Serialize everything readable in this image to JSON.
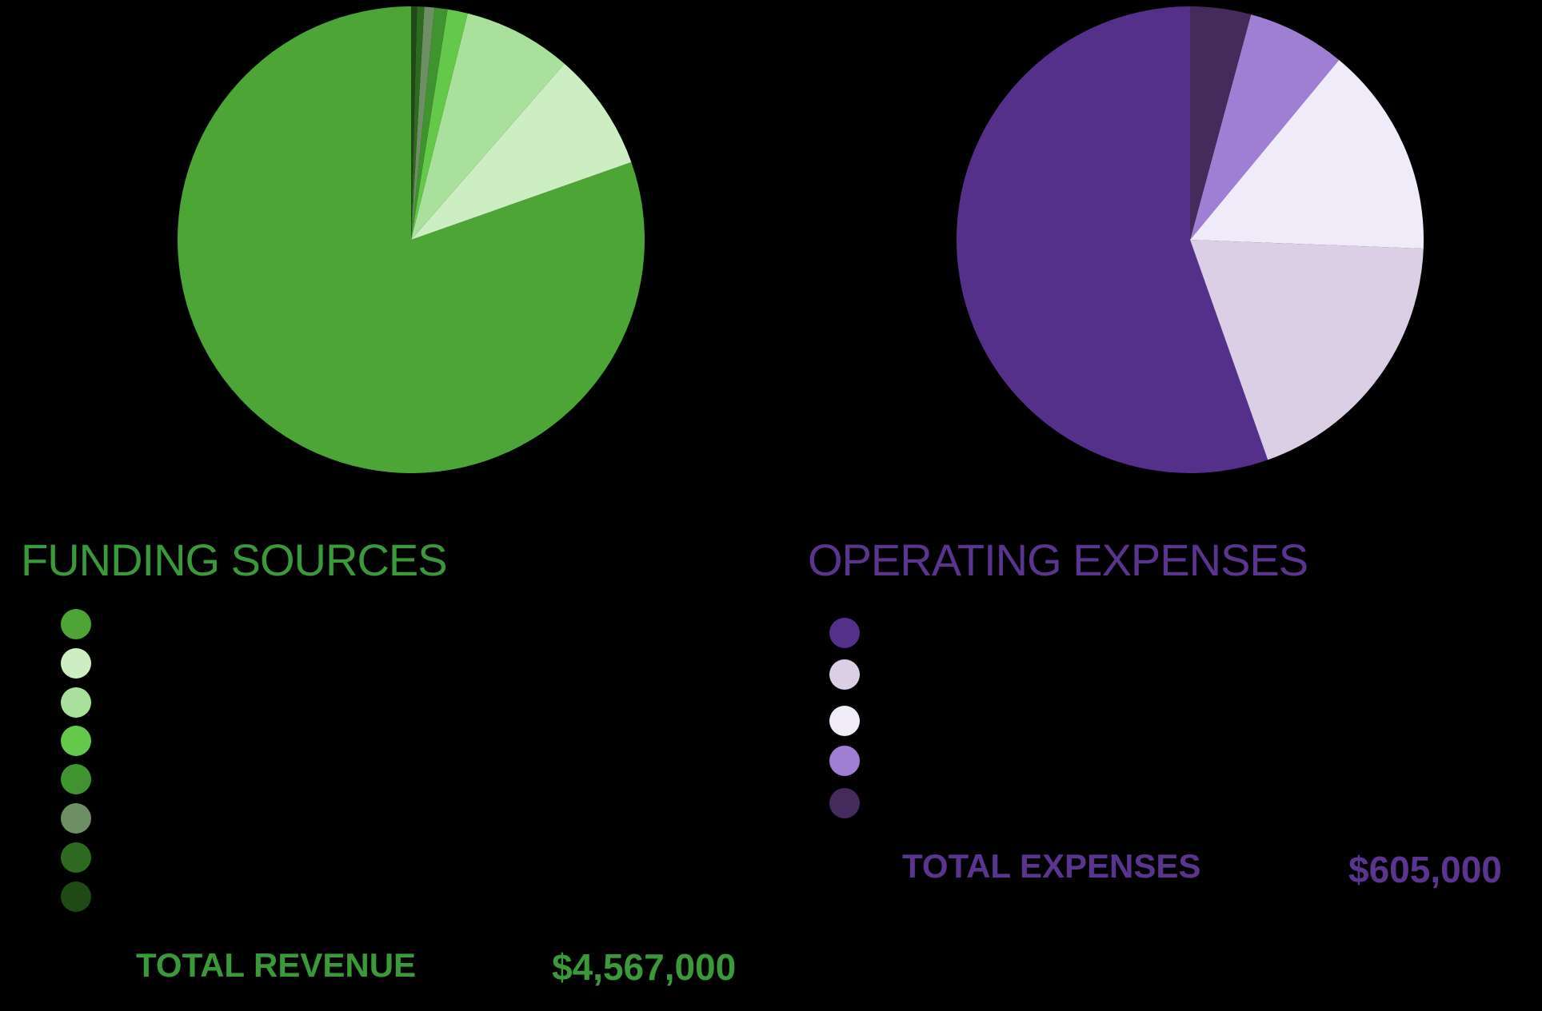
{
  "chart_data": [
    {
      "type": "pie",
      "title": "FUNDING SOURCES",
      "slices": [
        {
          "value": 80.4,
          "color": "#4ca535"
        },
        {
          "value": 8.2,
          "color": "#cdeec3"
        },
        {
          "value": 7.5,
          "color": "#a9e09b"
        },
        {
          "value": 1.4,
          "color": "#64c84a"
        },
        {
          "value": 0.9,
          "color": "#3f9430"
        },
        {
          "value": 0.7,
          "color": "#6e8f63"
        },
        {
          "value": 0.5,
          "color": "#2e6a21"
        },
        {
          "value": 0.4,
          "color": "#1f4a16"
        }
      ],
      "total_label": "TOTAL REVENUE",
      "total_value": "$4,567,000"
    },
    {
      "type": "pie",
      "title": "OPERATING EXPENSES",
      "slices": [
        {
          "value": 55.4,
          "color": "#54308a"
        },
        {
          "value": 19.0,
          "color": "#dbcfe6"
        },
        {
          "value": 14.6,
          "color": "#efebf9"
        },
        {
          "value": 6.8,
          "color": "#9f7fd4"
        },
        {
          "value": 4.2,
          "color": "#442b5c"
        }
      ],
      "total_label": "TOTAL EXPENSES",
      "total_value": "$605,000"
    }
  ]
}
